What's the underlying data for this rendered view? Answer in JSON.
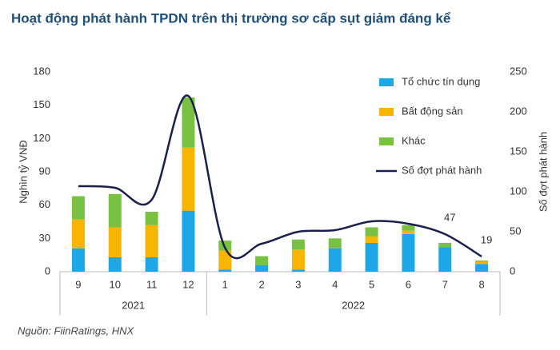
{
  "chart_data": {
    "type": "bar_line",
    "title": "Hoạt động phát hành TPDN trên thị trường sơ cấp sụt giảm đáng kể",
    "source": "Nguồn: FiinRatings, HNX",
    "y_label": "Nghìn tỷ VNĐ",
    "y2_label": "Số đợt phát hành",
    "categories": [
      "9",
      "10",
      "11",
      "12",
      "1",
      "2",
      "3",
      "4",
      "5",
      "6",
      "7",
      "8"
    ],
    "x_groups": [
      {
        "name": "2021",
        "count": 4
      },
      {
        "name": "2022",
        "count": 8
      }
    ],
    "series": [
      {
        "name": "Tổ chức tín dụng",
        "type": "bar",
        "color": "#1ea7e8",
        "values": [
          21,
          13,
          13,
          55,
          2,
          6,
          2,
          21,
          26,
          34,
          22,
          7
        ]
      },
      {
        "name": "Bất động sản",
        "type": "bar",
        "color": "#f7b500",
        "values": [
          26,
          27,
          29,
          57,
          17,
          0,
          18,
          0,
          6,
          3,
          0,
          2
        ]
      },
      {
        "name": "Khác",
        "type": "bar",
        "color": "#79c142",
        "values": [
          21,
          30,
          12,
          45,
          9,
          8,
          9,
          9,
          8,
          5,
          4,
          1
        ]
      },
      {
        "name": "Số đợt phát hành",
        "type": "line",
        "axis": "y2",
        "color": "#1b1f4b",
        "values": [
          107,
          105,
          90,
          220,
          30,
          35,
          50,
          52,
          63,
          60,
          47,
          19
        ],
        "value_labels": [
          null,
          null,
          null,
          null,
          null,
          null,
          null,
          null,
          null,
          null,
          "47",
          "19"
        ]
      }
    ],
    "ylim": [
      0,
      180
    ],
    "yticks": [
      0,
      30,
      60,
      90,
      120,
      150,
      180
    ],
    "y2lim": [
      0,
      250
    ],
    "y2ticks": [
      0,
      50,
      100,
      150,
      200,
      250
    ],
    "grid": false,
    "legend": "top-right"
  }
}
